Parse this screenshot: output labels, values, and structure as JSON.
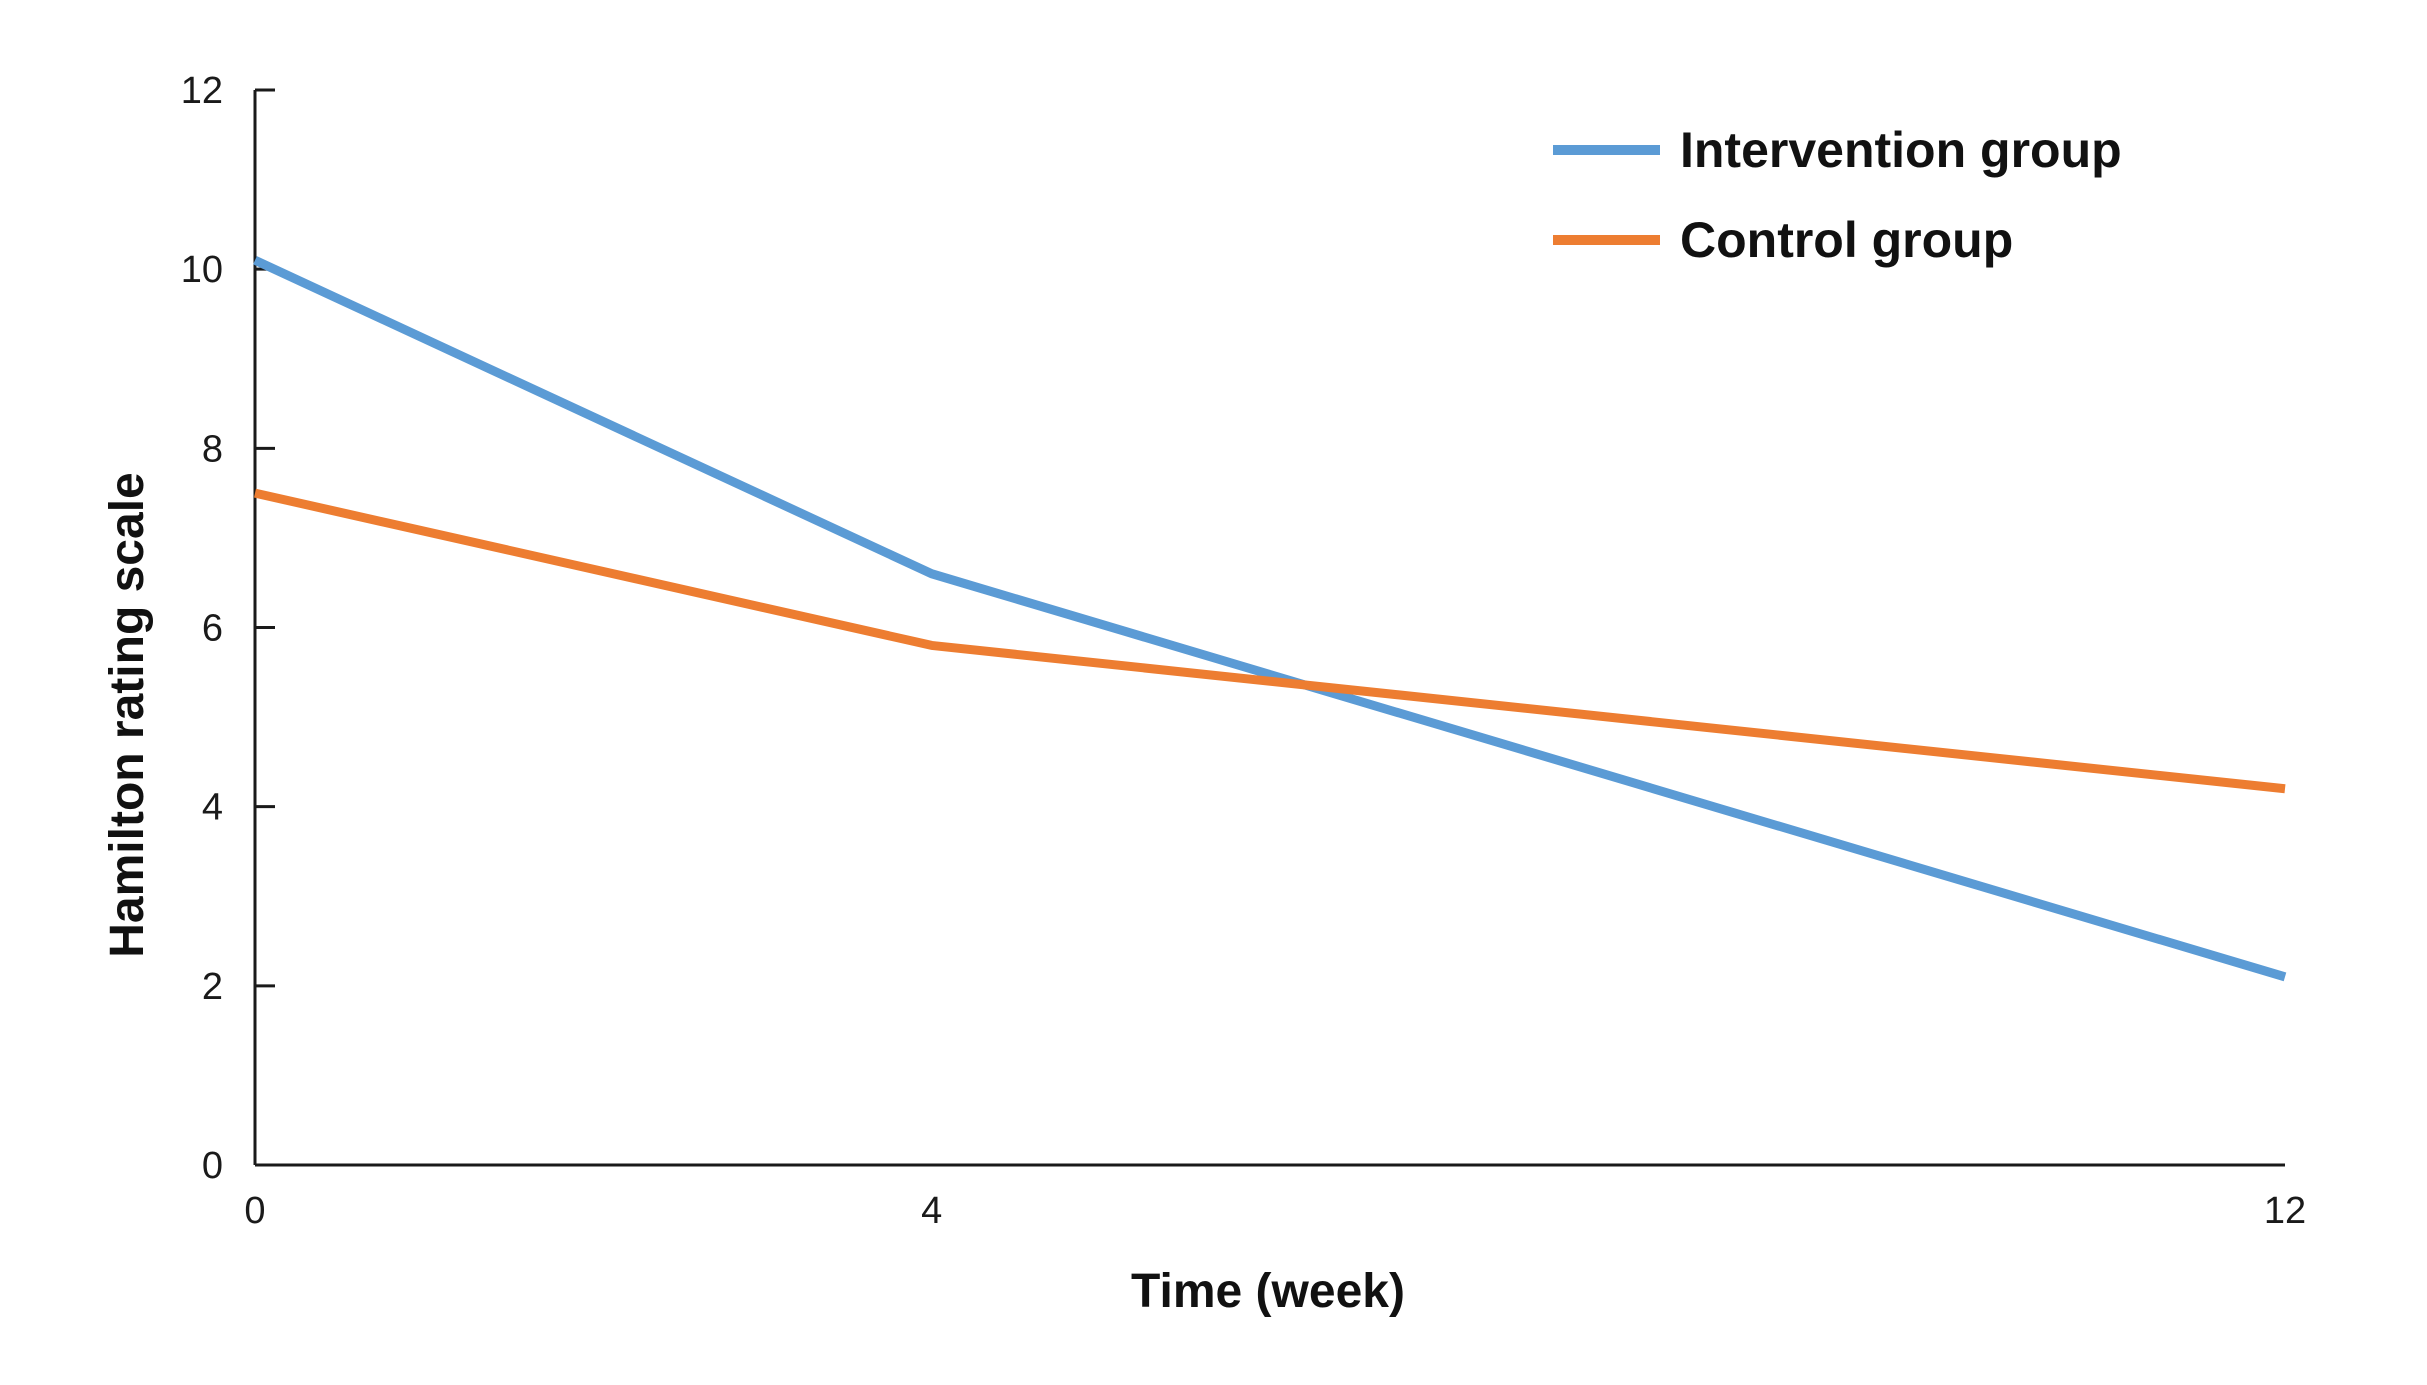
{
  "chart_data": {
    "type": "line",
    "title": "",
    "xlabel": "Time (week)",
    "ylabel": "Hamilton rating scale",
    "x": [
      0,
      4,
      12
    ],
    "x_ticks": [
      "0",
      "4",
      "12"
    ],
    "y_ticks": [
      "0",
      "2",
      "4",
      "6",
      "8",
      "10",
      "12"
    ],
    "xlim": [
      0,
      12
    ],
    "ylim": [
      0,
      12
    ],
    "grid": false,
    "legend_position": "top-right",
    "series": [
      {
        "name": "Intervention group",
        "color": "#5b9bd5",
        "values": [
          10.1,
          6.6,
          2.1
        ]
      },
      {
        "name": "Control group",
        "color": "#ed7d31",
        "values": [
          7.5,
          5.8,
          4.2
        ]
      }
    ]
  }
}
